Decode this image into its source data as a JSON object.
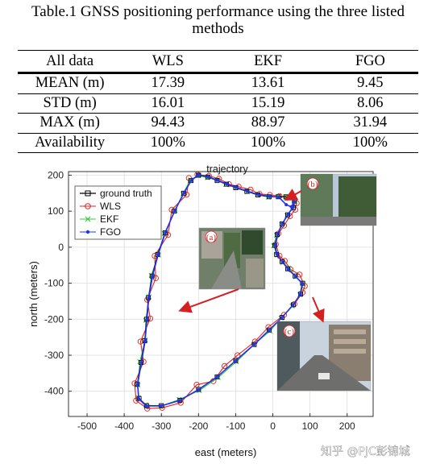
{
  "caption": {
    "line1": "Table.1 GNSS positioning performance using the three listed",
    "line2": "methods"
  },
  "table": {
    "headers": [
      "All data",
      "WLS",
      "EKF",
      "FGO"
    ],
    "rows": [
      [
        "MEAN (m)",
        "17.39",
        "13.61",
        "9.45"
      ],
      [
        "STD (m)",
        "16.01",
        "15.19",
        "8.06"
      ],
      [
        "MAX (m)",
        "94.43",
        "88.97",
        "31.94"
      ],
      [
        "Availability",
        "100%",
        "100%",
        "100%"
      ]
    ]
  },
  "chart_data": {
    "type": "line",
    "title": "trajectory",
    "xlabel": "east (meters)",
    "ylabel": "north (meters)",
    "xlim": [
      -550,
      270
    ],
    "ylim": [
      -470,
      210
    ],
    "xticks": [
      -500,
      -400,
      -300,
      -200,
      -100,
      0,
      100,
      200
    ],
    "yticks": [
      200,
      100,
      0,
      -100,
      -200,
      -300,
      -400
    ],
    "grid": true,
    "legend_position": "top-left",
    "series": [
      {
        "name": "ground truth",
        "color": "#000000",
        "marker": "square",
        "points": [
          [
            -200,
            200
          ],
          [
            -175,
            195
          ],
          [
            -150,
            185
          ],
          [
            -125,
            175
          ],
          [
            -100,
            165
          ],
          [
            -70,
            155
          ],
          [
            -40,
            145
          ],
          [
            -10,
            140
          ],
          [
            15,
            140
          ],
          [
            35,
            140
          ],
          [
            50,
            138
          ],
          [
            58,
            128
          ],
          [
            55,
            110
          ],
          [
            40,
            90
          ],
          [
            25,
            65
          ],
          [
            12,
            35
          ],
          [
            5,
            5
          ],
          [
            10,
            -20
          ],
          [
            25,
            -40
          ],
          [
            40,
            -60
          ],
          [
            60,
            -80
          ],
          [
            80,
            -100
          ],
          [
            75,
            -130
          ],
          [
            55,
            -160
          ],
          [
            25,
            -195
          ],
          [
            -10,
            -230
          ],
          [
            -50,
            -270
          ],
          [
            -100,
            -315
          ],
          [
            -150,
            -360
          ],
          [
            -200,
            -395
          ],
          [
            -250,
            -425
          ],
          [
            -300,
            -440
          ],
          [
            -340,
            -440
          ],
          [
            -360,
            -420
          ],
          [
            -365,
            -380
          ],
          [
            -355,
            -320
          ],
          [
            -345,
            -260
          ],
          [
            -340,
            -200
          ],
          [
            -335,
            -140
          ],
          [
            -325,
            -80
          ],
          [
            -310,
            -20
          ],
          [
            -290,
            40
          ],
          [
            -265,
            100
          ],
          [
            -240,
            150
          ],
          [
            -220,
            185
          ],
          [
            -200,
            200
          ]
        ]
      },
      {
        "name": "WLS",
        "color": "#e02020",
        "marker": "circle",
        "points": [
          [
            -203,
            202
          ],
          [
            -172,
            198
          ],
          [
            -145,
            190
          ],
          [
            -118,
            175
          ],
          [
            -92,
            168
          ],
          [
            -60,
            160
          ],
          [
            -36,
            148
          ],
          [
            -8,
            145
          ],
          [
            18,
            142
          ],
          [
            40,
            138
          ],
          [
            55,
            140
          ],
          [
            64,
            122
          ],
          [
            60,
            104
          ],
          [
            46,
            86
          ],
          [
            30,
            60
          ],
          [
            15,
            38
          ],
          [
            8,
            8
          ],
          [
            18,
            -24
          ],
          [
            32,
            -38
          ],
          [
            48,
            -62
          ],
          [
            72,
            -76
          ],
          [
            86,
            -108
          ],
          [
            80,
            -126
          ],
          [
            58,
            -158
          ],
          [
            30,
            -188
          ],
          [
            -12,
            -222
          ],
          [
            -48,
            -262
          ],
          [
            -95,
            -300
          ],
          [
            -130,
            -330
          ],
          [
            -160,
            -372
          ],
          [
            -205,
            -382
          ],
          [
            -248,
            -432
          ],
          [
            -298,
            -446
          ],
          [
            -338,
            -448
          ],
          [
            -368,
            -426
          ],
          [
            -372,
            -378
          ],
          [
            -348,
            -318
          ],
          [
            -356,
            -262
          ],
          [
            -330,
            -198
          ],
          [
            -338,
            -146
          ],
          [
            -315,
            -86
          ],
          [
            -318,
            -24
          ],
          [
            -282,
            34
          ],
          [
            -272,
            104
          ],
          [
            -232,
            146
          ],
          [
            -226,
            192
          ]
        ]
      },
      {
        "name": "EKF",
        "color": "#33cc33",
        "marker": "x",
        "points": [
          [
            -201,
            199
          ],
          [
            -176,
            193
          ],
          [
            -149,
            187
          ],
          [
            -127,
            174
          ],
          [
            -98,
            166
          ],
          [
            -68,
            154
          ],
          [
            -42,
            146
          ],
          [
            -12,
            139
          ],
          [
            14,
            141
          ],
          [
            36,
            139
          ],
          [
            52,
            136
          ],
          [
            60,
            126
          ],
          [
            53,
            108
          ],
          [
            38,
            88
          ],
          [
            24,
            63
          ],
          [
            10,
            33
          ],
          [
            2,
            4
          ],
          [
            12,
            -22
          ],
          [
            27,
            -42
          ],
          [
            43,
            -58
          ],
          [
            62,
            -82
          ],
          [
            82,
            -102
          ],
          [
            73,
            -132
          ],
          [
            52,
            -163
          ],
          [
            22,
            -197
          ],
          [
            -8,
            -233
          ],
          [
            -52,
            -272
          ],
          [
            -98,
            -318
          ],
          [
            -147,
            -362
          ],
          [
            -198,
            -398
          ],
          [
            -252,
            -423
          ],
          [
            -302,
            -442
          ],
          [
            -342,
            -438
          ],
          [
            -362,
            -418
          ],
          [
            -363,
            -383
          ],
          [
            -358,
            -318
          ],
          [
            -343,
            -258
          ],
          [
            -342,
            -203
          ],
          [
            -333,
            -138
          ],
          [
            -327,
            -78
          ],
          [
            -308,
            -22
          ],
          [
            -292,
            38
          ],
          [
            -263,
            102
          ],
          [
            -242,
            148
          ],
          [
            -222,
            187
          ],
          [
            -201,
            199
          ]
        ]
      },
      {
        "name": "FGO",
        "color": "#2233ee",
        "marker": "dot",
        "points": [
          [
            -200,
            201
          ],
          [
            -174,
            196
          ],
          [
            -150,
            186
          ],
          [
            -124,
            176
          ],
          [
            -99,
            166
          ],
          [
            -69,
            156
          ],
          [
            -39,
            146
          ],
          [
            -9,
            141
          ],
          [
            16,
            139
          ],
          [
            36,
            118
          ],
          [
            50,
            112
          ],
          [
            57,
            126
          ],
          [
            54,
            111
          ],
          [
            41,
            91
          ],
          [
            26,
            66
          ],
          [
            13,
            36
          ],
          [
            6,
            6
          ],
          [
            11,
            -19
          ],
          [
            26,
            -41
          ],
          [
            41,
            -61
          ],
          [
            61,
            -81
          ],
          [
            79,
            -101
          ],
          [
            74,
            -131
          ],
          [
            54,
            -161
          ],
          [
            24,
            -196
          ],
          [
            -11,
            -231
          ],
          [
            -51,
            -271
          ],
          [
            -101,
            -316
          ],
          [
            -151,
            -361
          ],
          [
            -201,
            -396
          ],
          [
            -251,
            -426
          ],
          [
            -301,
            -441
          ],
          [
            -341,
            -441
          ],
          [
            -361,
            -421
          ],
          [
            -364,
            -381
          ],
          [
            -354,
            -321
          ],
          [
            -344,
            -261
          ],
          [
            -339,
            -201
          ],
          [
            -334,
            -141
          ],
          [
            -324,
            -81
          ],
          [
            -309,
            -21
          ],
          [
            -289,
            41
          ],
          [
            -264,
            101
          ],
          [
            -239,
            151
          ],
          [
            -219,
            186
          ],
          [
            -200,
            201
          ]
        ]
      }
    ],
    "annotations": [
      "(a)",
      "(b)",
      "(c)"
    ]
  },
  "watermark": "知乎 @PJC彭锦城",
  "colors": {
    "arrow": "#d42020",
    "grid": "#dddddd",
    "axis": "#333333"
  }
}
